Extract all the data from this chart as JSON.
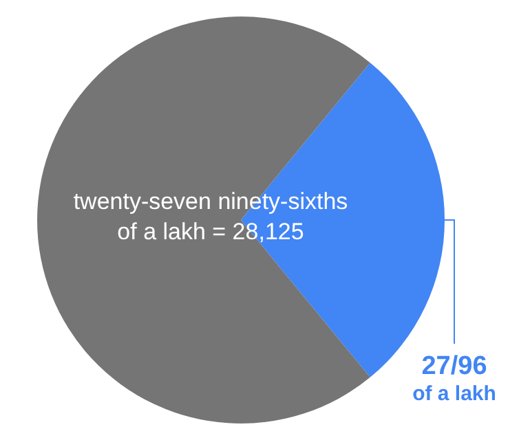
{
  "chart_data": {
    "type": "pie",
    "categories": [
      "27/96 of a lakh",
      null
    ],
    "values": [
      28.125,
      71.875
    ],
    "colors": [
      "#4285f4",
      "#757575"
    ],
    "annotations": [
      "twenty-seven ninety-sixths of a lakh = 28,125"
    ]
  }
}
